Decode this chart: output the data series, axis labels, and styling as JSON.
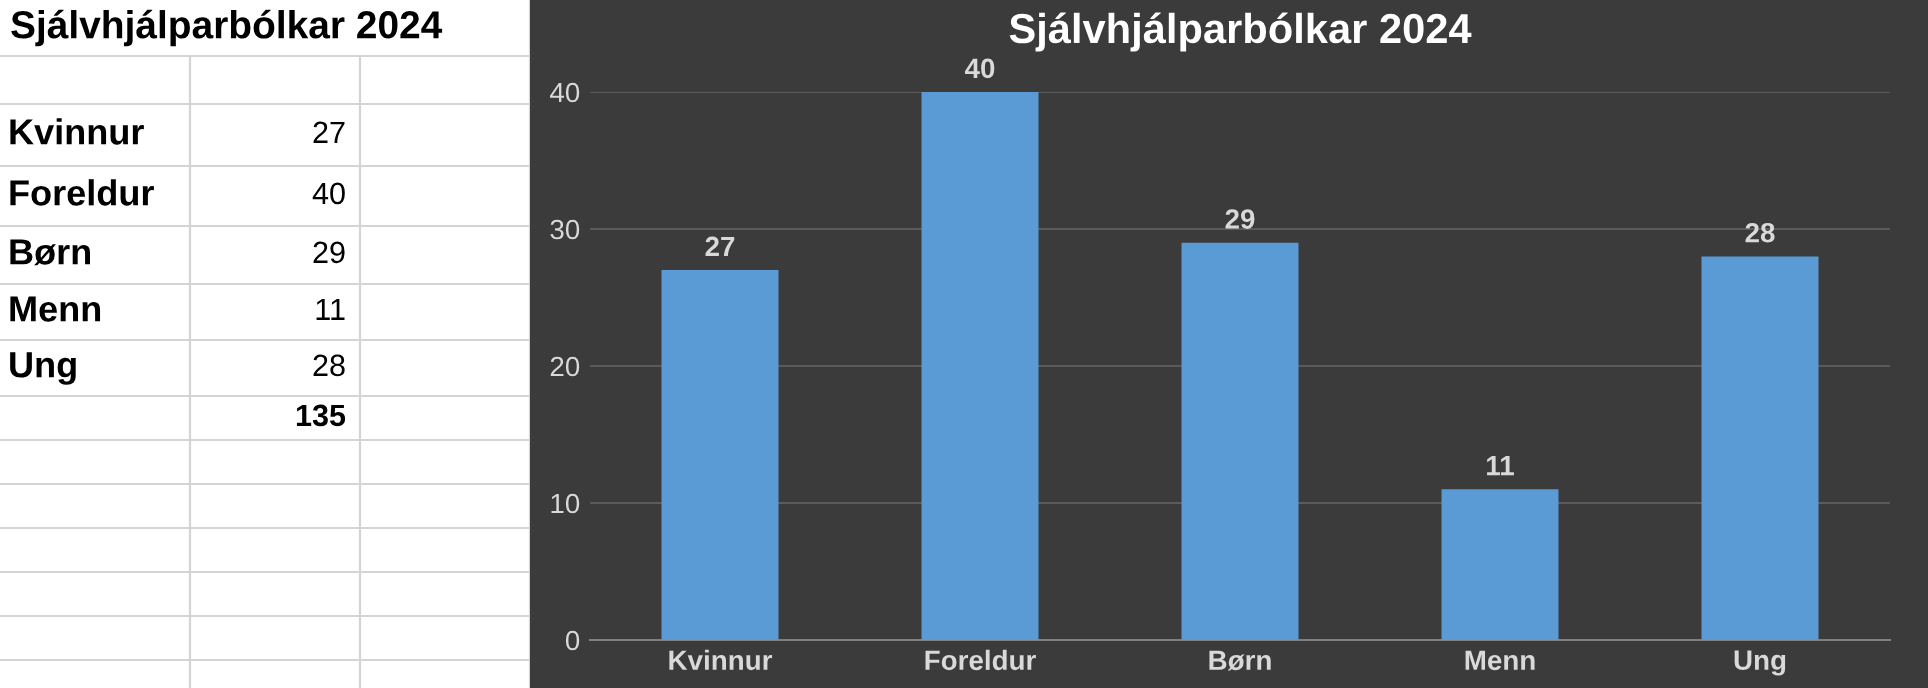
{
  "chart_data": [
    {
      "type": "other",
      "title": "Sjálvhjálparbólkar 2024",
      "annotations": [
        "Kvinnur",
        "27",
        "Foreldur",
        "40",
        "Børn",
        "29",
        "Menn",
        "11",
        "Ung",
        "28",
        "135"
      ]
    },
    {
      "type": "bar",
      "title": "Sjálvhjálparbólkar 2024",
      "categories": [
        "Kvinnur",
        "Foreldur",
        "Børn",
        "Menn",
        "Ung"
      ],
      "values": [
        27,
        40,
        29,
        11,
        28
      ],
      "color": "#5b9bd5",
      "ylim": [
        0,
        40
      ],
      "yticks": [
        0,
        10,
        20,
        30,
        40
      ],
      "grid": "y",
      "data_labels": true
    }
  ]
}
